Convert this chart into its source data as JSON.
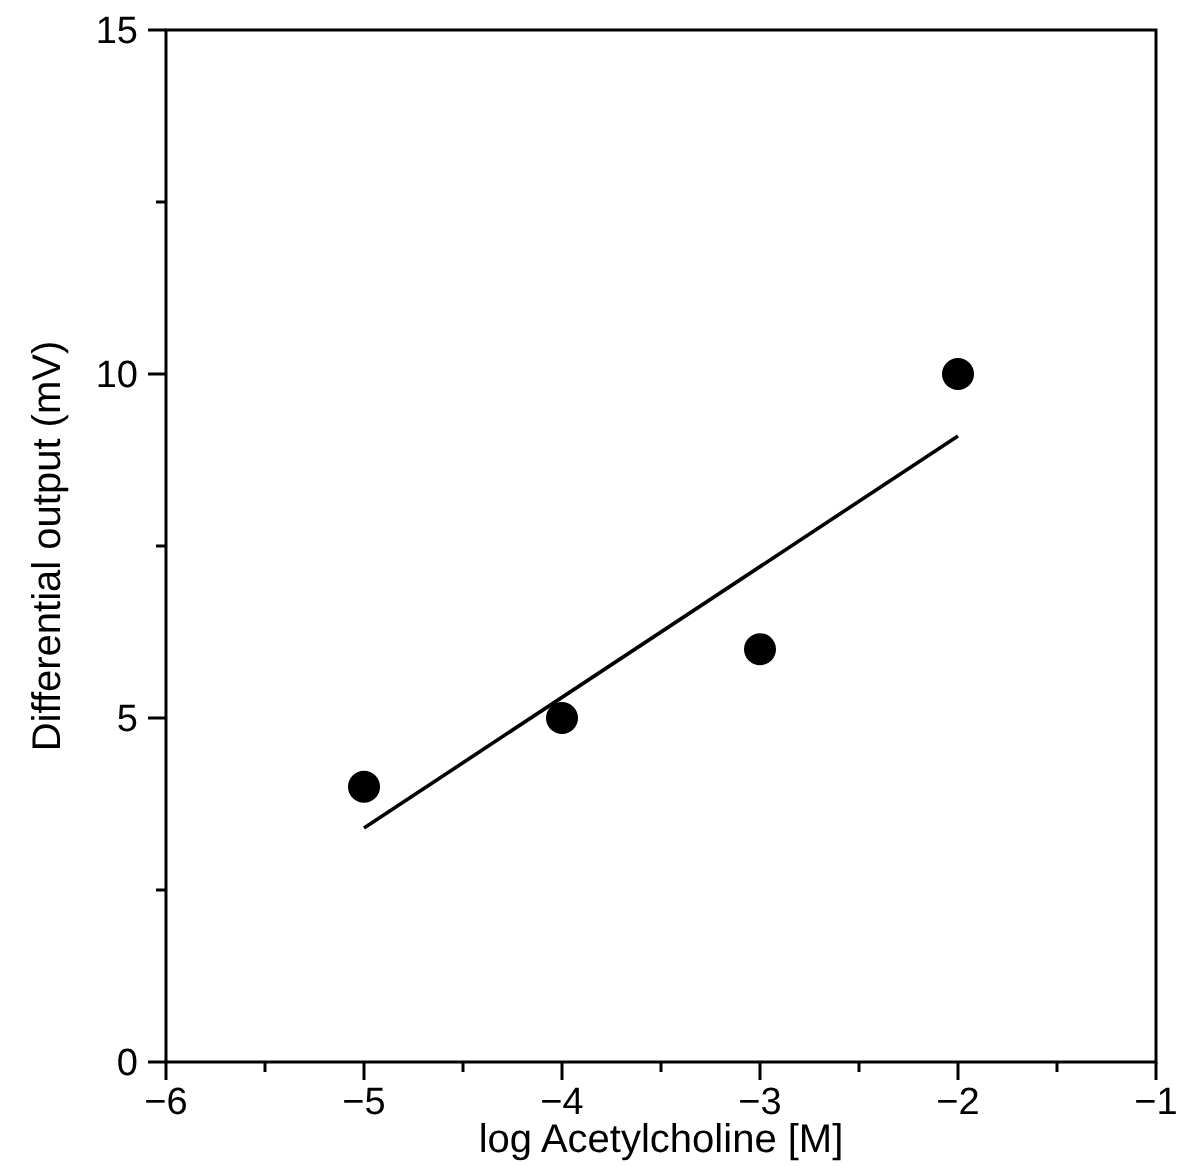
{
  "chart_data": {
    "type": "scatter",
    "xlabel": "log Acetylcholine [M]",
    "ylabel": "Differential output (mV)",
    "xlim": [
      -6,
      -1
    ],
    "ylim": [
      0,
      15
    ],
    "xticks": [
      -6,
      {
        "value": -5.5,
        "label": null
      },
      -5,
      {
        "value": -4.5,
        "label": null
      },
      -4,
      {
        "value": -3.5,
        "label": null
      },
      -3,
      {
        "value": -2.5,
        "label": null
      },
      -2,
      {
        "value": -1.5,
        "label": null
      },
      -1
    ],
    "yticks": [
      0,
      {
        "value": 2.5,
        "label": null
      },
      5,
      {
        "value": 7.5,
        "label": null
      },
      10,
      {
        "value": 12.5,
        "label": null
      },
      15
    ],
    "grid": false,
    "series": [
      {
        "color": "#000000",
        "marker": "circle",
        "x": [
          -5,
          -4,
          -3,
          -2
        ],
        "values": [
          4,
          5,
          6,
          10
        ]
      },
      {
        "type": "line",
        "color": "#000000",
        "x": [
          -5,
          -2
        ],
        "values": [
          3.4,
          9.1
        ],
        "line_style": "solid"
      }
    ]
  }
}
